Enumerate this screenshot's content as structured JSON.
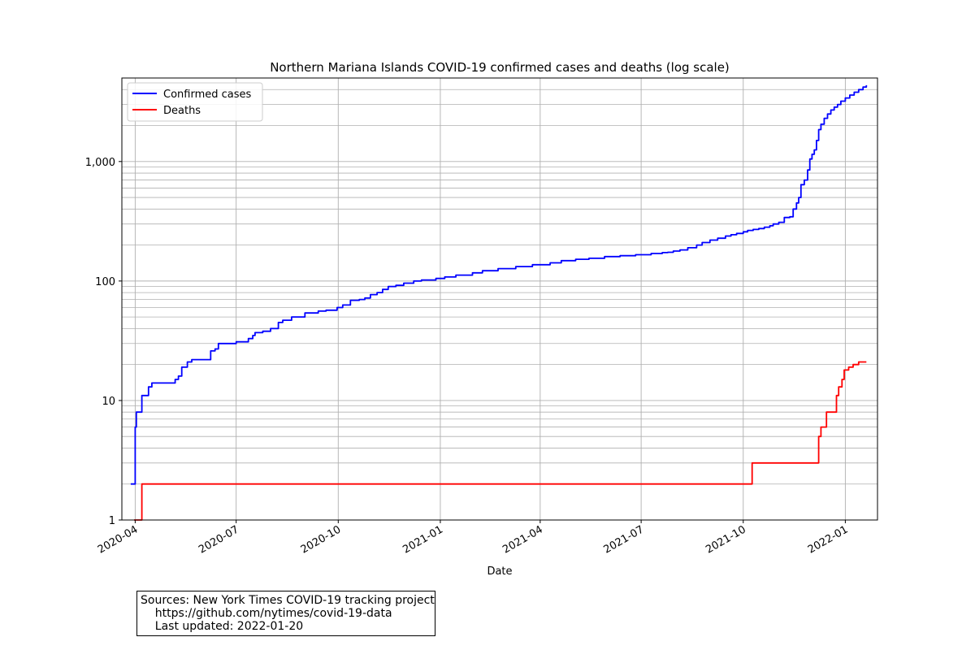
{
  "chart_data": {
    "type": "line",
    "title": "Northern Mariana Islands COVID-19 confirmed cases and deaths (log scale)",
    "xlabel": "Date",
    "ylabel": "",
    "yscale": "log",
    "xlim": [
      "2020-03-20",
      "2022-01-30"
    ],
    "ylim": [
      1,
      5000
    ],
    "x_ticks": [
      "2020-04-01",
      "2020-07-01",
      "2020-10-01",
      "2021-01-01",
      "2021-04-01",
      "2021-07-01",
      "2021-10-01",
      "2022-01-01"
    ],
    "x_tick_labels": [
      "2020-04",
      "2020-07",
      "2020-10",
      "2021-01",
      "2021-04",
      "2021-07",
      "2021-10",
      "2022-01"
    ],
    "y_ticks": [
      1,
      10,
      100,
      1000
    ],
    "y_tick_labels": [
      "1",
      "10",
      "100",
      "1,000"
    ],
    "grid": true,
    "legend": "top-left",
    "series": [
      {
        "name": "Confirmed cases",
        "color": "#0000ff",
        "step": true,
        "points": [
          [
            "2020-03-28",
            2
          ],
          [
            "2020-03-31",
            2
          ],
          [
            "2020-04-01",
            6
          ],
          [
            "2020-04-02",
            8
          ],
          [
            "2020-04-07",
            11
          ],
          [
            "2020-04-13",
            13
          ],
          [
            "2020-04-16",
            14
          ],
          [
            "2020-05-07",
            15
          ],
          [
            "2020-05-10",
            16
          ],
          [
            "2020-05-13",
            19
          ],
          [
            "2020-05-18",
            21
          ],
          [
            "2020-05-22",
            22
          ],
          [
            "2020-06-08",
            26
          ],
          [
            "2020-06-12",
            27
          ],
          [
            "2020-06-15",
            30
          ],
          [
            "2020-07-01",
            31
          ],
          [
            "2020-07-12",
            33
          ],
          [
            "2020-07-16",
            35
          ],
          [
            "2020-07-18",
            37
          ],
          [
            "2020-07-25",
            38
          ],
          [
            "2020-08-01",
            40
          ],
          [
            "2020-08-08",
            45
          ],
          [
            "2020-08-12",
            47
          ],
          [
            "2020-08-20",
            50
          ],
          [
            "2020-09-01",
            54
          ],
          [
            "2020-09-13",
            56
          ],
          [
            "2020-09-20",
            57
          ],
          [
            "2020-09-30",
            60
          ],
          [
            "2020-10-05",
            63
          ],
          [
            "2020-10-12",
            69
          ],
          [
            "2020-10-20",
            70
          ],
          [
            "2020-10-25",
            72
          ],
          [
            "2020-10-30",
            77
          ],
          [
            "2020-11-05",
            80
          ],
          [
            "2020-11-10",
            85
          ],
          [
            "2020-11-15",
            90
          ],
          [
            "2020-11-22",
            92
          ],
          [
            "2020-11-29",
            96
          ],
          [
            "2020-12-08",
            100
          ],
          [
            "2020-12-15",
            102
          ],
          [
            "2020-12-28",
            105
          ],
          [
            "2021-01-05",
            108
          ],
          [
            "2021-01-15",
            112
          ],
          [
            "2021-01-30",
            117
          ],
          [
            "2021-02-08",
            122
          ],
          [
            "2021-02-22",
            127
          ],
          [
            "2021-03-10",
            132
          ],
          [
            "2021-03-25",
            137
          ],
          [
            "2021-04-10",
            142
          ],
          [
            "2021-04-20",
            148
          ],
          [
            "2021-05-03",
            152
          ],
          [
            "2021-05-15",
            155
          ],
          [
            "2021-05-29",
            160
          ],
          [
            "2021-06-12",
            163
          ],
          [
            "2021-06-26",
            166
          ],
          [
            "2021-07-10",
            170
          ],
          [
            "2021-07-20",
            173
          ],
          [
            "2021-07-25",
            174
          ],
          [
            "2021-07-30",
            178
          ],
          [
            "2021-08-05",
            182
          ],
          [
            "2021-08-12",
            190
          ],
          [
            "2021-08-20",
            200
          ],
          [
            "2021-08-25",
            210
          ],
          [
            "2021-09-01",
            220
          ],
          [
            "2021-09-08",
            228
          ],
          [
            "2021-09-15",
            238
          ],
          [
            "2021-09-20",
            244
          ],
          [
            "2021-09-25",
            250
          ],
          [
            "2021-10-01",
            258
          ],
          [
            "2021-10-05",
            265
          ],
          [
            "2021-10-10",
            270
          ],
          [
            "2021-10-15",
            275
          ],
          [
            "2021-10-20",
            282
          ],
          [
            "2021-10-25",
            290
          ],
          [
            "2021-10-28",
            300
          ],
          [
            "2021-11-02",
            310
          ],
          [
            "2021-11-07",
            340
          ],
          [
            "2021-11-12",
            345
          ],
          [
            "2021-11-15",
            400
          ],
          [
            "2021-11-18",
            450
          ],
          [
            "2021-11-20",
            500
          ],
          [
            "2021-11-22",
            640
          ],
          [
            "2021-11-25",
            700
          ],
          [
            "2021-11-28",
            850
          ],
          [
            "2021-11-30",
            1050
          ],
          [
            "2021-12-02",
            1150
          ],
          [
            "2021-12-04",
            1250
          ],
          [
            "2021-12-06",
            1500
          ],
          [
            "2021-12-08",
            1850
          ],
          [
            "2021-12-10",
            2050
          ],
          [
            "2021-12-13",
            2300
          ],
          [
            "2021-12-16",
            2500
          ],
          [
            "2021-12-19",
            2700
          ],
          [
            "2021-12-22",
            2850
          ],
          [
            "2021-12-25",
            3000
          ],
          [
            "2021-12-28",
            3200
          ],
          [
            "2022-01-01",
            3400
          ],
          [
            "2022-01-05",
            3600
          ],
          [
            "2022-01-09",
            3800
          ],
          [
            "2022-01-13",
            4000
          ],
          [
            "2022-01-17",
            4200
          ],
          [
            "2022-01-20",
            4350
          ]
        ]
      },
      {
        "name": "Deaths",
        "color": "#ff0000",
        "step": true,
        "points": [
          [
            "2020-03-31",
            1
          ],
          [
            "2020-04-06",
            1
          ],
          [
            "2020-04-07",
            2
          ],
          [
            "2021-10-08",
            2
          ],
          [
            "2021-10-09",
            3
          ],
          [
            "2021-12-07",
            3
          ],
          [
            "2021-12-08",
            5
          ],
          [
            "2021-12-10",
            6
          ],
          [
            "2021-12-15",
            8
          ],
          [
            "2021-12-24",
            11
          ],
          [
            "2021-12-26",
            13
          ],
          [
            "2021-12-29",
            15
          ],
          [
            "2021-12-31",
            18
          ],
          [
            "2022-01-04",
            19
          ],
          [
            "2022-01-08",
            20
          ],
          [
            "2022-01-13",
            21
          ],
          [
            "2022-01-20",
            21
          ]
        ]
      }
    ]
  },
  "source_note": {
    "line1": "Sources: New York Times COVID-19 tracking project",
    "line2": "    https://github.com/nytimes/covid-19-data",
    "line3": "    Last updated: 2022-01-20"
  }
}
